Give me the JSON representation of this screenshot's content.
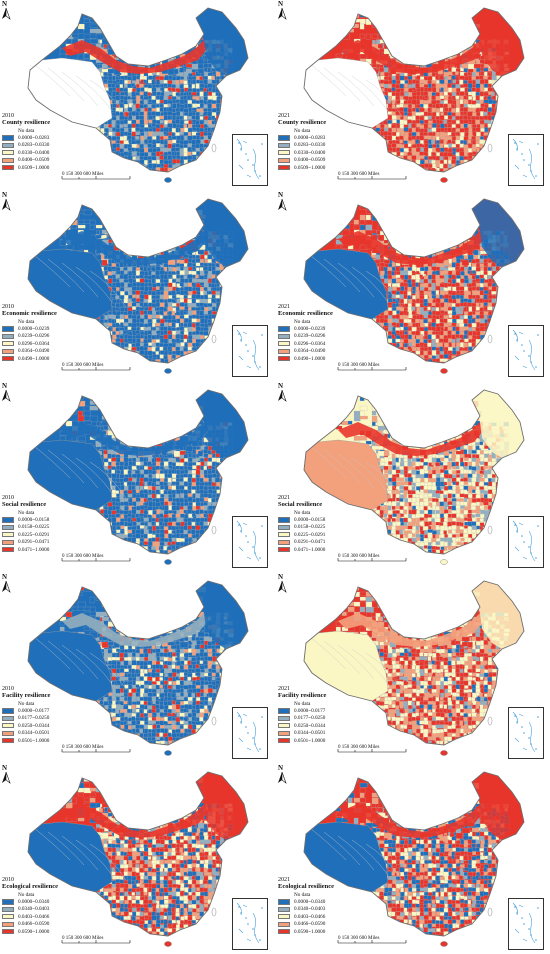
{
  "colors": {
    "c1": "#1f6fba",
    "c2": "#93aebe",
    "c3": "#fbf7c5",
    "c4": "#f3a07c",
    "c5": "#e8352b",
    "nodata": "#ffffff",
    "border": "#8a8a8a",
    "water": "#4aa0d8"
  },
  "north_label": "N",
  "scale_label": "0  150 300      600 Miles",
  "no_data_label": "No data",
  "panels": [
    {
      "year": "2010",
      "title": "County resilience",
      "legend": [
        "0.0000~0.0283",
        "0.0283~0.0330",
        "0.0330~0.0400",
        "0.0400~0.0509",
        "0.0509~1.0000"
      ]
    },
    {
      "year": "2021",
      "title": "County resilience",
      "legend": [
        "0.0000~0.0283",
        "0.0283~0.0330",
        "0.0330~0.0400",
        "0.0400~0.0509",
        "0.0509~1.0000"
      ]
    },
    {
      "year": "2010",
      "title": "Economic resilience",
      "legend": [
        "0.0000~0.0239",
        "0.0239~0.0296",
        "0.0296~0.0364",
        "0.0364~0.0490",
        "0.0490~1.0000"
      ]
    },
    {
      "year": "2021",
      "title": "Economic resilience",
      "legend": [
        "0.0000~0.0239",
        "0.0239~0.0296",
        "0.0296~0.0364",
        "0.0364~0.0490",
        "0.0490~1.0000"
      ]
    },
    {
      "year": "2010",
      "title": "Social resilience",
      "legend": [
        "0.0000~0.0158",
        "0.0158~0.0225",
        "0.0225~0.0291",
        "0.0291~0.0471",
        "0.0471~1.0000"
      ]
    },
    {
      "year": "2021",
      "title": "Social resilience",
      "legend": [
        "0.0000~0.0158",
        "0.0158~0.0225",
        "0.0225~0.0291",
        "0.0291~0.0471",
        "0.0471~1.0000"
      ]
    },
    {
      "year": "2010",
      "title": "Facility resilience",
      "legend": [
        "0.0000~0.0177",
        "0.0177~0.0250",
        "0.0250~0.0344",
        "0.0344~0.0501",
        "0.0501~1.0000"
      ]
    },
    {
      "year": "2021",
      "title": "Facility resilience",
      "legend": [
        "0.0000~0.0177",
        "0.0177~0.0250",
        "0.0250~0.0344",
        "0.0344~0.0501",
        "0.0501~1.0000"
      ]
    },
    {
      "year": "2010",
      "title": "Ecological resilience",
      "legend": [
        "0.0000~0.0340",
        "0.0340~0.0403",
        "0.0403~0.0466",
        "0.0466~0.0590",
        "0.0590~1.0000"
      ]
    },
    {
      "year": "2021",
      "title": "Ecological resilience",
      "legend": [
        "0.0000~0.0340",
        "0.0340~0.0403",
        "0.0403~0.0466",
        "0.0466~0.0590",
        "0.0590~1.0000"
      ]
    }
  ],
  "map_layers": [
    {
      "id": "county-2010",
      "dominant": "c1",
      "mix": [
        0.62,
        0.12,
        0.1,
        0.08,
        0.08
      ],
      "west": "nodata",
      "north_east": "c1",
      "north_band": "c5"
    },
    {
      "id": "county-2021",
      "dominant": "c5",
      "mix": [
        0.08,
        0.06,
        0.16,
        0.22,
        0.48
      ],
      "west": "nodata",
      "north_east": "c5",
      "north_band": "c5"
    },
    {
      "id": "economic-2010",
      "dominant": "c1",
      "mix": [
        0.64,
        0.12,
        0.1,
        0.08,
        0.06
      ],
      "west": "c1",
      "north_east": "c1",
      "north_band": "c1"
    },
    {
      "id": "economic-2021",
      "dominant": "c5",
      "mix": [
        0.16,
        0.1,
        0.14,
        0.2,
        0.4
      ],
      "west": "c1",
      "north_east": "c1",
      "north_band": "c5"
    },
    {
      "id": "social-2010",
      "dominant": "c1",
      "mix": [
        0.68,
        0.1,
        0.08,
        0.06,
        0.08
      ],
      "west": "c1",
      "north_east": "c1",
      "north_band": "c1"
    },
    {
      "id": "social-2021",
      "dominant": "c3",
      "mix": [
        0.08,
        0.12,
        0.36,
        0.22,
        0.22
      ],
      "west": "c4",
      "north_east": "c3",
      "north_band": "c5"
    },
    {
      "id": "facility-2010",
      "dominant": "c1",
      "mix": [
        0.6,
        0.16,
        0.12,
        0.06,
        0.06
      ],
      "west": "c1",
      "north_east": "c1",
      "north_band": "c2"
    },
    {
      "id": "facility-2021",
      "dominant": "c5",
      "mix": [
        0.06,
        0.08,
        0.3,
        0.24,
        0.32
      ],
      "west": "c3",
      "north_east": "c3",
      "north_band": "c4"
    },
    {
      "id": "ecological-2010",
      "dominant": "c5",
      "mix": [
        0.24,
        0.1,
        0.2,
        0.16,
        0.3
      ],
      "west": "c1",
      "north_east": "c5",
      "north_band": "c5"
    },
    {
      "id": "ecological-2021",
      "dominant": "c5",
      "mix": [
        0.24,
        0.1,
        0.2,
        0.16,
        0.3
      ],
      "west": "c1",
      "north_east": "c5",
      "north_band": "c5"
    }
  ]
}
